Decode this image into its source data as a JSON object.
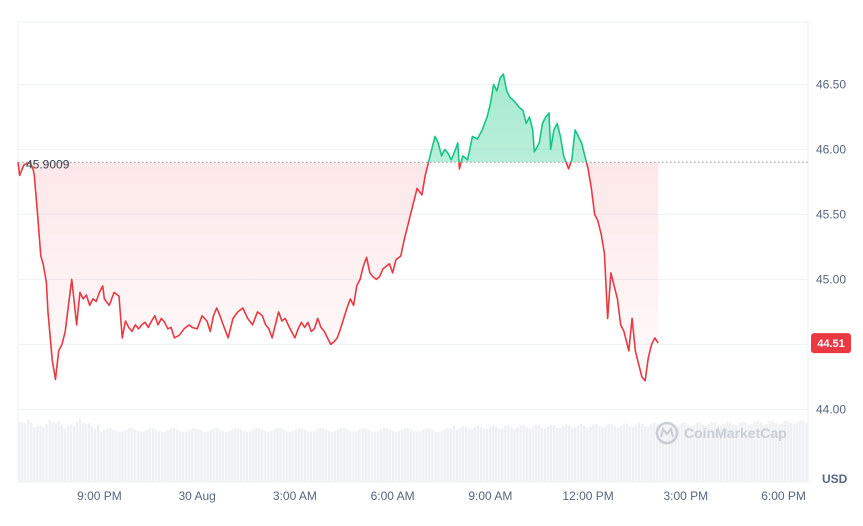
{
  "chart_data": {
    "type": "line",
    "currency_label": "USD",
    "watermark": "CoinMarketCap",
    "reference_label": "45.9009",
    "reference_value": 45.9009,
    "last_label": "44.51",
    "last_value": 44.51,
    "ylim": [
      43.98,
      46.98
    ],
    "y_ticks": [
      {
        "value": 44.0,
        "label": "44.00"
      },
      {
        "value": 44.5,
        "label": "44.50"
      },
      {
        "value": 45.0,
        "label": "45.00"
      },
      {
        "value": 45.5,
        "label": "45.50"
      },
      {
        "value": 46.0,
        "label": "46.00"
      },
      {
        "value": 46.5,
        "label": "46.50"
      }
    ],
    "x_ticks": [
      {
        "x": 3,
        "label": "9:00 PM"
      },
      {
        "x": 6,
        "label": "30 Aug"
      },
      {
        "x": 9,
        "label": "3:00 AM"
      },
      {
        "x": 12,
        "label": "6:00 AM"
      },
      {
        "x": 15,
        "label": "9:00 AM"
      },
      {
        "x": 18,
        "label": "12:00 PM"
      },
      {
        "x": 21,
        "label": "3:00 PM"
      },
      {
        "x": 24,
        "label": "6:00 PM"
      }
    ],
    "xlim": [
      0.5,
      24.75
    ],
    "colors": {
      "up": "#16c784",
      "down": "#ea3943",
      "grid": "#eff2f5",
      "volume": "#eef0f3"
    },
    "series": [
      {
        "points": [
          [
            0.5,
            45.9
          ],
          [
            0.55,
            45.8
          ],
          [
            0.68,
            45.88
          ],
          [
            0.87,
            45.9
          ],
          [
            0.96,
            45.85
          ],
          [
            1.0,
            45.8
          ],
          [
            1.1,
            45.5
          ],
          [
            1.2,
            45.18
          ],
          [
            1.27,
            45.12
          ],
          [
            1.37,
            44.98
          ],
          [
            1.42,
            44.75
          ],
          [
            1.55,
            44.38
          ],
          [
            1.65,
            44.23
          ],
          [
            1.75,
            44.45
          ],
          [
            1.85,
            44.5
          ],
          [
            1.95,
            44.6
          ],
          [
            2.05,
            44.8
          ],
          [
            2.15,
            45.0
          ],
          [
            2.3,
            44.65
          ],
          [
            2.4,
            44.9
          ],
          [
            2.5,
            44.85
          ],
          [
            2.6,
            44.88
          ],
          [
            2.7,
            44.8
          ],
          [
            2.8,
            44.85
          ],
          [
            2.9,
            44.83
          ],
          [
            3.0,
            44.9
          ],
          [
            3.1,
            44.95
          ],
          [
            3.15,
            44.85
          ],
          [
            3.3,
            44.8
          ],
          [
            3.45,
            44.9
          ],
          [
            3.6,
            44.87
          ],
          [
            3.7,
            44.55
          ],
          [
            3.8,
            44.68
          ],
          [
            3.9,
            44.63
          ],
          [
            4.0,
            44.6
          ],
          [
            4.1,
            44.65
          ],
          [
            4.2,
            44.62
          ],
          [
            4.3,
            44.65
          ],
          [
            4.4,
            44.67
          ],
          [
            4.5,
            44.63
          ],
          [
            4.6,
            44.68
          ],
          [
            4.7,
            44.72
          ],
          [
            4.8,
            44.65
          ],
          [
            4.9,
            44.7
          ],
          [
            5.0,
            44.67
          ],
          [
            5.1,
            44.62
          ],
          [
            5.2,
            44.63
          ],
          [
            5.3,
            44.55
          ],
          [
            5.45,
            44.57
          ],
          [
            5.6,
            44.62
          ],
          [
            5.75,
            44.65
          ],
          [
            5.85,
            44.63
          ],
          [
            6.0,
            44.62
          ],
          [
            6.15,
            44.72
          ],
          [
            6.3,
            44.68
          ],
          [
            6.4,
            44.6
          ],
          [
            6.5,
            44.72
          ],
          [
            6.6,
            44.78
          ],
          [
            6.7,
            44.72
          ],
          [
            6.8,
            44.65
          ],
          [
            6.95,
            44.55
          ],
          [
            7.1,
            44.7
          ],
          [
            7.25,
            44.75
          ],
          [
            7.4,
            44.78
          ],
          [
            7.55,
            44.7
          ],
          [
            7.7,
            44.65
          ],
          [
            7.85,
            44.75
          ],
          [
            8.0,
            44.72
          ],
          [
            8.1,
            44.65
          ],
          [
            8.2,
            44.62
          ],
          [
            8.3,
            44.55
          ],
          [
            8.4,
            44.65
          ],
          [
            8.5,
            44.75
          ],
          [
            8.6,
            44.68
          ],
          [
            8.7,
            44.7
          ],
          [
            8.85,
            44.62
          ],
          [
            9.0,
            44.55
          ],
          [
            9.1,
            44.62
          ],
          [
            9.2,
            44.67
          ],
          [
            9.3,
            44.63
          ],
          [
            9.4,
            44.67
          ],
          [
            9.5,
            44.6
          ],
          [
            9.6,
            44.62
          ],
          [
            9.7,
            44.7
          ],
          [
            9.8,
            44.63
          ],
          [
            9.9,
            44.6
          ],
          [
            10.0,
            44.55
          ],
          [
            10.1,
            44.5
          ],
          [
            10.2,
            44.52
          ],
          [
            10.3,
            44.55
          ],
          [
            10.4,
            44.62
          ],
          [
            10.5,
            44.7
          ],
          [
            10.6,
            44.78
          ],
          [
            10.7,
            44.85
          ],
          [
            10.8,
            44.8
          ],
          [
            10.9,
            44.95
          ],
          [
            11.0,
            45.0
          ],
          [
            11.1,
            45.1
          ],
          [
            11.2,
            45.17
          ],
          [
            11.3,
            45.05
          ],
          [
            11.4,
            45.02
          ],
          [
            11.5,
            45.0
          ],
          [
            11.6,
            45.02
          ],
          [
            11.7,
            45.08
          ],
          [
            11.8,
            45.1
          ],
          [
            11.9,
            45.12
          ],
          [
            12.0,
            45.05
          ],
          [
            12.1,
            45.15
          ],
          [
            12.25,
            45.18
          ],
          [
            12.35,
            45.3
          ],
          [
            12.45,
            45.4
          ],
          [
            12.6,
            45.55
          ],
          [
            12.75,
            45.7
          ],
          [
            12.9,
            45.65
          ],
          [
            13.0,
            45.8
          ],
          [
            13.1,
            45.9
          ],
          [
            13.2,
            46.0
          ],
          [
            13.3,
            46.1
          ],
          [
            13.4,
            46.05
          ],
          [
            13.5,
            45.95
          ],
          [
            13.6,
            46.0
          ],
          [
            13.7,
            45.97
          ],
          [
            13.8,
            45.92
          ],
          [
            13.9,
            45.98
          ],
          [
            14.0,
            46.05
          ],
          [
            14.05,
            45.85
          ],
          [
            14.15,
            45.95
          ],
          [
            14.3,
            45.92
          ],
          [
            14.45,
            46.1
          ],
          [
            14.6,
            46.08
          ],
          [
            14.75,
            46.15
          ],
          [
            14.9,
            46.25
          ],
          [
            15.0,
            46.35
          ],
          [
            15.1,
            46.5
          ],
          [
            15.2,
            46.45
          ],
          [
            15.3,
            46.55
          ],
          [
            15.4,
            46.58
          ],
          [
            15.5,
            46.45
          ],
          [
            15.6,
            46.4
          ],
          [
            15.7,
            46.38
          ],
          [
            15.8,
            46.35
          ],
          [
            15.9,
            46.32
          ],
          [
            16.0,
            46.3
          ],
          [
            16.1,
            46.2
          ],
          [
            16.2,
            46.25
          ],
          [
            16.3,
            46.15
          ],
          [
            16.35,
            45.98
          ],
          [
            16.5,
            46.05
          ],
          [
            16.6,
            46.2
          ],
          [
            16.7,
            46.25
          ],
          [
            16.8,
            46.28
          ],
          [
            16.85,
            46.0
          ],
          [
            16.95,
            46.15
          ],
          [
            17.05,
            46.2
          ],
          [
            17.15,
            46.1
          ],
          [
            17.25,
            45.95
          ],
          [
            17.4,
            45.85
          ],
          [
            17.5,
            45.92
          ],
          [
            17.6,
            46.15
          ],
          [
            17.7,
            46.1
          ],
          [
            17.8,
            46.05
          ],
          [
            17.9,
            45.95
          ],
          [
            18.0,
            45.85
          ],
          [
            18.1,
            45.7
          ],
          [
            18.2,
            45.5
          ],
          [
            18.3,
            45.45
          ],
          [
            18.4,
            45.35
          ],
          [
            18.5,
            45.2
          ],
          [
            18.6,
            44.7
          ],
          [
            18.7,
            45.05
          ],
          [
            18.8,
            44.95
          ],
          [
            18.9,
            44.85
          ],
          [
            19.0,
            44.65
          ],
          [
            19.1,
            44.6
          ],
          [
            19.25,
            44.45
          ],
          [
            19.35,
            44.7
          ],
          [
            19.45,
            44.45
          ],
          [
            19.55,
            44.35
          ],
          [
            19.65,
            44.25
          ],
          [
            19.75,
            44.22
          ],
          [
            19.85,
            44.4
          ],
          [
            19.95,
            44.5
          ],
          [
            20.05,
            44.55
          ],
          [
            20.15,
            44.51
          ]
        ]
      }
    ]
  }
}
